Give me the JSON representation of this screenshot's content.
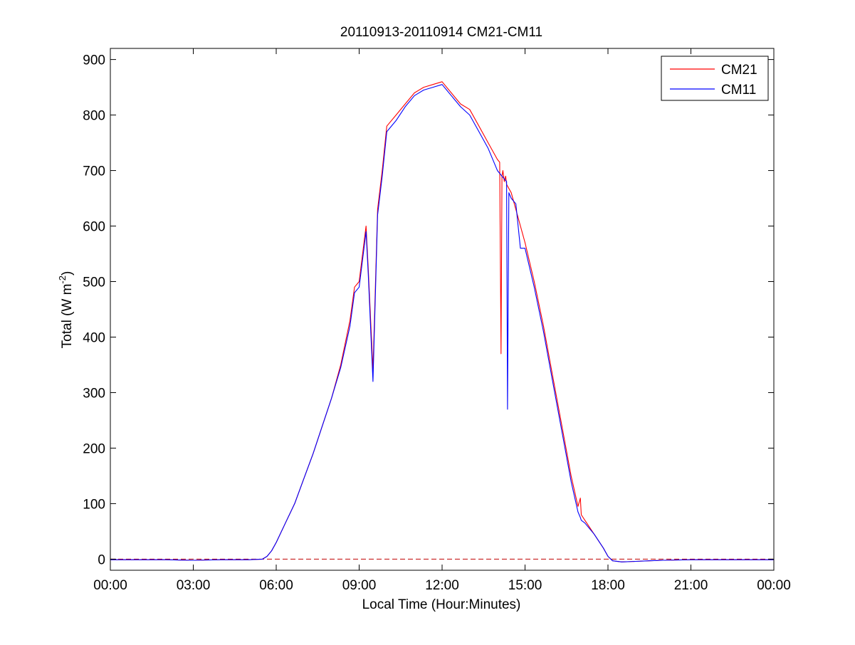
{
  "chart_data": {
    "type": "line",
    "title": "20110913-20110914 CM21-CM11",
    "xlabel": "Local Time (Hour:Minutes)",
    "ylabel_prefix": "Total (W m",
    "ylabel_sup": "-2",
    "ylabel_suffix": ")",
    "xlim": [
      "00:00",
      "24:00"
    ],
    "x_ticks": [
      "00:00",
      "03:00",
      "06:00",
      "09:00",
      "12:00",
      "15:00",
      "18:00",
      "21:00",
      "00:00"
    ],
    "ylim": [
      -20,
      920
    ],
    "y_ticks": [
      0,
      100,
      200,
      300,
      400,
      500,
      600,
      700,
      800,
      900
    ],
    "grid": false,
    "legend_position": "top-right",
    "reference_line": {
      "y": 0,
      "style": "dashed",
      "color": "#c00000"
    },
    "series": [
      {
        "name": "CM21",
        "color": "#ff0000",
        "x": [
          "00:00",
          "01:00",
          "02:00",
          "03:00",
          "04:00",
          "05:00",
          "05:30",
          "05:40",
          "05:50",
          "06:00",
          "06:20",
          "06:40",
          "07:00",
          "07:20",
          "07:40",
          "08:00",
          "08:20",
          "08:40",
          "08:50",
          "09:00",
          "09:15",
          "09:20",
          "09:30",
          "09:40",
          "09:50",
          "10:00",
          "10:20",
          "10:40",
          "11:00",
          "11:20",
          "11:40",
          "12:00",
          "12:20",
          "12:40",
          "13:00",
          "13:20",
          "13:40",
          "14:00",
          "14:05",
          "14:08",
          "14:10",
          "14:12",
          "14:15",
          "14:18",
          "14:20",
          "14:30",
          "14:40",
          "15:00",
          "15:20",
          "15:40",
          "16:00",
          "16:20",
          "16:40",
          "16:55",
          "17:00",
          "17:02",
          "17:10",
          "17:30",
          "17:50",
          "18:00",
          "18:10",
          "18:30",
          "19:00",
          "19:30",
          "20:00",
          "21:00",
          "22:00",
          "23:00",
          "24:00"
        ],
        "y": [
          -1,
          -1,
          -1,
          -2,
          -1,
          -1,
          0,
          5,
          15,
          30,
          65,
          100,
          145,
          190,
          240,
          290,
          350,
          430,
          490,
          500,
          600,
          520,
          340,
          630,
          700,
          780,
          800,
          820,
          840,
          850,
          855,
          860,
          840,
          820,
          810,
          780,
          750,
          720,
          715,
          370,
          690,
          700,
          680,
          690,
          675,
          660,
          630,
          570,
          500,
          420,
          330,
          240,
          150,
          95,
          110,
          80,
          70,
          45,
          20,
          5,
          -3,
          -5,
          -4,
          -3,
          -2,
          -1,
          -1,
          -1,
          -1
        ]
      },
      {
        "name": "CM11",
        "color": "#0000ff",
        "x": [
          "00:00",
          "01:00",
          "02:00",
          "03:00",
          "04:00",
          "05:00",
          "05:30",
          "05:40",
          "05:50",
          "06:00",
          "06:20",
          "06:40",
          "07:00",
          "07:20",
          "07:40",
          "08:00",
          "08:20",
          "08:40",
          "08:50",
          "09:00",
          "09:15",
          "09:20",
          "09:30",
          "09:40",
          "09:50",
          "10:00",
          "10:20",
          "10:40",
          "11:00",
          "11:20",
          "11:40",
          "12:00",
          "12:20",
          "12:40",
          "13:00",
          "13:20",
          "13:40",
          "14:00",
          "14:10",
          "14:20",
          "14:22",
          "14:25",
          "14:30",
          "14:40",
          "14:50",
          "15:00",
          "15:20",
          "15:40",
          "16:00",
          "16:20",
          "16:40",
          "16:55",
          "17:00",
          "17:02",
          "17:10",
          "17:30",
          "17:50",
          "18:00",
          "18:10",
          "18:30",
          "19:00",
          "19:30",
          "20:00",
          "21:00",
          "22:00",
          "23:00",
          "24:00"
        ],
        "y": [
          -1,
          -1,
          -1,
          -2,
          -1,
          -1,
          0,
          5,
          15,
          30,
          65,
          100,
          145,
          190,
          240,
          290,
          345,
          420,
          480,
          490,
          590,
          510,
          320,
          620,
          690,
          770,
          790,
          815,
          835,
          845,
          850,
          855,
          835,
          815,
          800,
          770,
          740,
          700,
          690,
          680,
          270,
          660,
          650,
          640,
          560,
          560,
          490,
          410,
          320,
          230,
          140,
          85,
          75,
          70,
          65,
          45,
          20,
          5,
          -3,
          -5,
          -4,
          -3,
          -2,
          -1,
          -1,
          -1,
          -1
        ]
      }
    ]
  }
}
